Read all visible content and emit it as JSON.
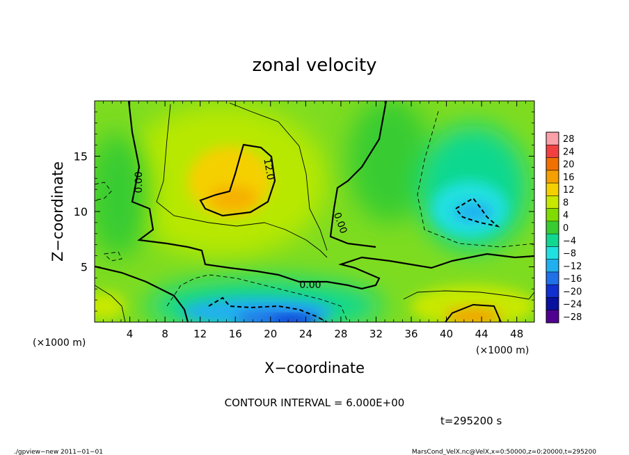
{
  "chart_data": {
    "type": "heatmap",
    "title": "zonal velocity",
    "xlabel": "X−coordinate",
    "ylabel": "Z−coordinate",
    "x_unit_left": "(×1000 m)",
    "x_unit_right": "(×1000 m)",
    "xlim": [
      0,
      50
    ],
    "ylim": [
      0,
      20
    ],
    "x_ticks": [
      4,
      8,
      12,
      16,
      20,
      24,
      28,
      32,
      36,
      40,
      44,
      48
    ],
    "y_ticks": [
      5,
      10,
      15
    ],
    "contour_interval_text": "CONTOUR INTERVAL = 6.000E+00",
    "time_text": "t=295200 s",
    "footer_left": "./gpview−new   2011−01−01",
    "footer_right": "MarsCond_VelX.nc@VelX,x=0:50000,z=0:20000,t=295200",
    "contour_labels": [
      "0.00",
      "12.0",
      "0.00",
      "0.00"
    ],
    "colorbar": {
      "levels": [
        28,
        24,
        20,
        16,
        12,
        8,
        4,
        0,
        -4,
        -8,
        -12,
        -16,
        -20,
        -24,
        -28
      ],
      "labels": [
        "28",
        "24",
        "20",
        "16",
        "12",
        "8",
        "4",
        "0",
        "−4",
        "−8",
        "−12",
        "−16",
        "−20",
        "−24",
        "−28"
      ],
      "colors": [
        "#f9a0a8",
        "#f24040",
        "#f07000",
        "#f5a000",
        "#f5d000",
        "#c8e800",
        "#80dc00",
        "#38cc30",
        "#10d890",
        "#20e0e0",
        "#20b0f0",
        "#2070e8",
        "#1030d0",
        "#0810a0",
        "#500090"
      ]
    },
    "regions": [
      {
        "name": "positive-core",
        "x": [
          13,
          20
        ],
        "z": [
          10,
          16
        ],
        "value": 14
      },
      {
        "name": "positive-lobe-east",
        "x": [
          40,
          46
        ],
        "z": [
          0,
          2
        ],
        "value": 14
      },
      {
        "name": "negative-core-east",
        "x": [
          41,
          46
        ],
        "z": [
          9,
          11
        ],
        "value": -10
      },
      {
        "name": "negative-core-bottom",
        "x": [
          12,
          26
        ],
        "z": [
          0,
          2
        ],
        "value": -18
      }
    ]
  }
}
